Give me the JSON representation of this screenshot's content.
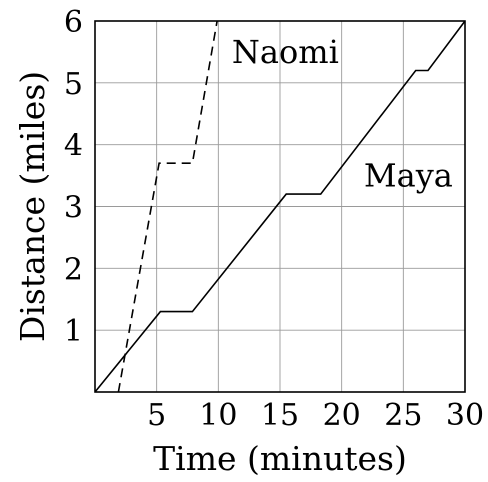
{
  "chart_data": {
    "type": "line",
    "xlabel": "Time (minutes)",
    "ylabel": "Distance (miles)",
    "xlim": [
      0,
      30
    ],
    "ylim": [
      0,
      6
    ],
    "grid": true,
    "x_ticks": [
      5,
      10,
      15,
      20,
      25,
      30
    ],
    "y_ticks": [
      1,
      2,
      3,
      4,
      5,
      6
    ],
    "series": [
      {
        "name": "Maya",
        "line_style": "solid",
        "color": "#000000",
        "points": [
          [
            0,
            0
          ],
          [
            5.3,
            1.3
          ],
          [
            7.9,
            1.3
          ],
          [
            15.5,
            3.2
          ],
          [
            18.3,
            3.2
          ],
          [
            26,
            5.2
          ],
          [
            27,
            5.2
          ],
          [
            30,
            6
          ]
        ]
      },
      {
        "name": "Naomi",
        "line_style": "dashed",
        "color": "#000000",
        "points": [
          [
            1.9,
            0
          ],
          [
            5.2,
            3.7
          ],
          [
            7.9,
            3.7
          ],
          [
            9.9,
            6
          ]
        ]
      }
    ]
  }
}
